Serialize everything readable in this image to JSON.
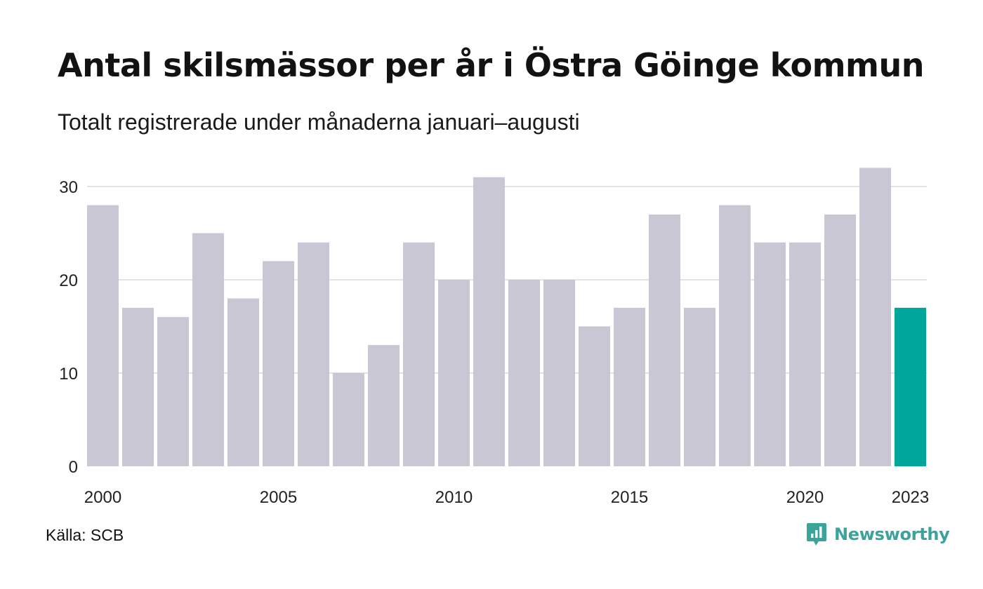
{
  "title": "Antal skilsmässor per år i Östra Göinge kommun",
  "subtitle": "Totalt registrerade under månaderna januari–augusti",
  "source": "Källa: SCB",
  "brand": "Newsworthy",
  "colors": {
    "bar": "#c8c7d3",
    "highlight": "#00a69a",
    "grid": "#e3e3e3",
    "brand": "#3aa39a"
  },
  "chart_data": {
    "type": "bar",
    "title": "Antal skilsmässor per år i Östra Göinge kommun",
    "subtitle": "Totalt registrerade under månaderna januari–augusti",
    "categories": [
      2000,
      2001,
      2002,
      2003,
      2004,
      2005,
      2006,
      2007,
      2008,
      2009,
      2010,
      2011,
      2012,
      2013,
      2014,
      2015,
      2016,
      2017,
      2018,
      2019,
      2020,
      2021,
      2022,
      2023
    ],
    "values": [
      28,
      17,
      16,
      25,
      18,
      22,
      24,
      10,
      13,
      24,
      20,
      31,
      20,
      20,
      15,
      17,
      27,
      17,
      28,
      24,
      24,
      27,
      32,
      17
    ],
    "highlight_category": 2023,
    "x_tick_labels": [
      "2000",
      "2005",
      "2010",
      "2015",
      "2020",
      "2023"
    ],
    "y_ticks": [
      0,
      10,
      20,
      30
    ],
    "ylim": [
      0,
      32
    ],
    "xlabel": "",
    "ylabel": "",
    "grid": true
  }
}
